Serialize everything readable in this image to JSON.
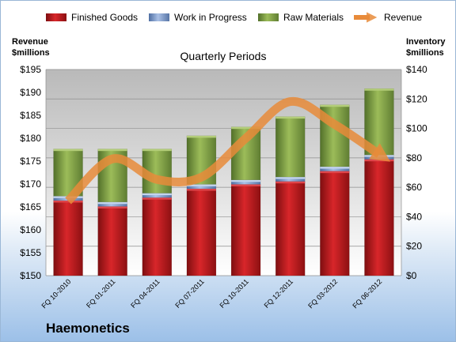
{
  "company": "Haemonetics",
  "chart_data": {
    "type": "bar",
    "stacked": true,
    "subtitle": "Quarterly Periods",
    "categories": [
      "FQ 10-2010",
      "FQ 01-2011",
      "FQ 04-2011",
      "FQ 07-2011",
      "FQ 10-2011",
      "FQ 12-2011",
      "FQ 03-2012",
      "FQ 06-2012"
    ],
    "left_axis": {
      "label_line1": "Revenue",
      "label_line2": "$millions",
      "ylim": [
        150,
        195
      ],
      "ticks": [
        "$150",
        "$155",
        "$160",
        "$165",
        "$170",
        "$175",
        "$180",
        "$185",
        "$190",
        "$195"
      ]
    },
    "right_axis": {
      "label_line1": "Inventory",
      "label_line2": "$millions",
      "ylim": [
        0,
        140
      ],
      "ticks": [
        "$0",
        "$20",
        "$40",
        "$60",
        "$80",
        "$100",
        "$120",
        "$140"
      ]
    },
    "grid": true,
    "legend_position": "top",
    "series": [
      {
        "name": "Finished Goods",
        "axis": "right",
        "color": "#c0181c",
        "values": [
          51,
          47,
          53,
          59,
          62,
          64,
          71,
          79
        ]
      },
      {
        "name": "Work in Progress",
        "axis": "right",
        "color": "#7f9ccc",
        "values": [
          3,
          3,
          3,
          3,
          3,
          3,
          3,
          3
        ]
      },
      {
        "name": "Raw Materials",
        "axis": "right",
        "color": "#8aaa45",
        "values": [
          32,
          36,
          30,
          33,
          36,
          41,
          42,
          45
        ]
      },
      {
        "name": "Revenue",
        "axis": "left",
        "type": "line",
        "color": "#e88b3a",
        "values": [
          166.3,
          175.5,
          171.0,
          171.5,
          180.0,
          188.0,
          183.0,
          176.5
        ]
      }
    ]
  }
}
